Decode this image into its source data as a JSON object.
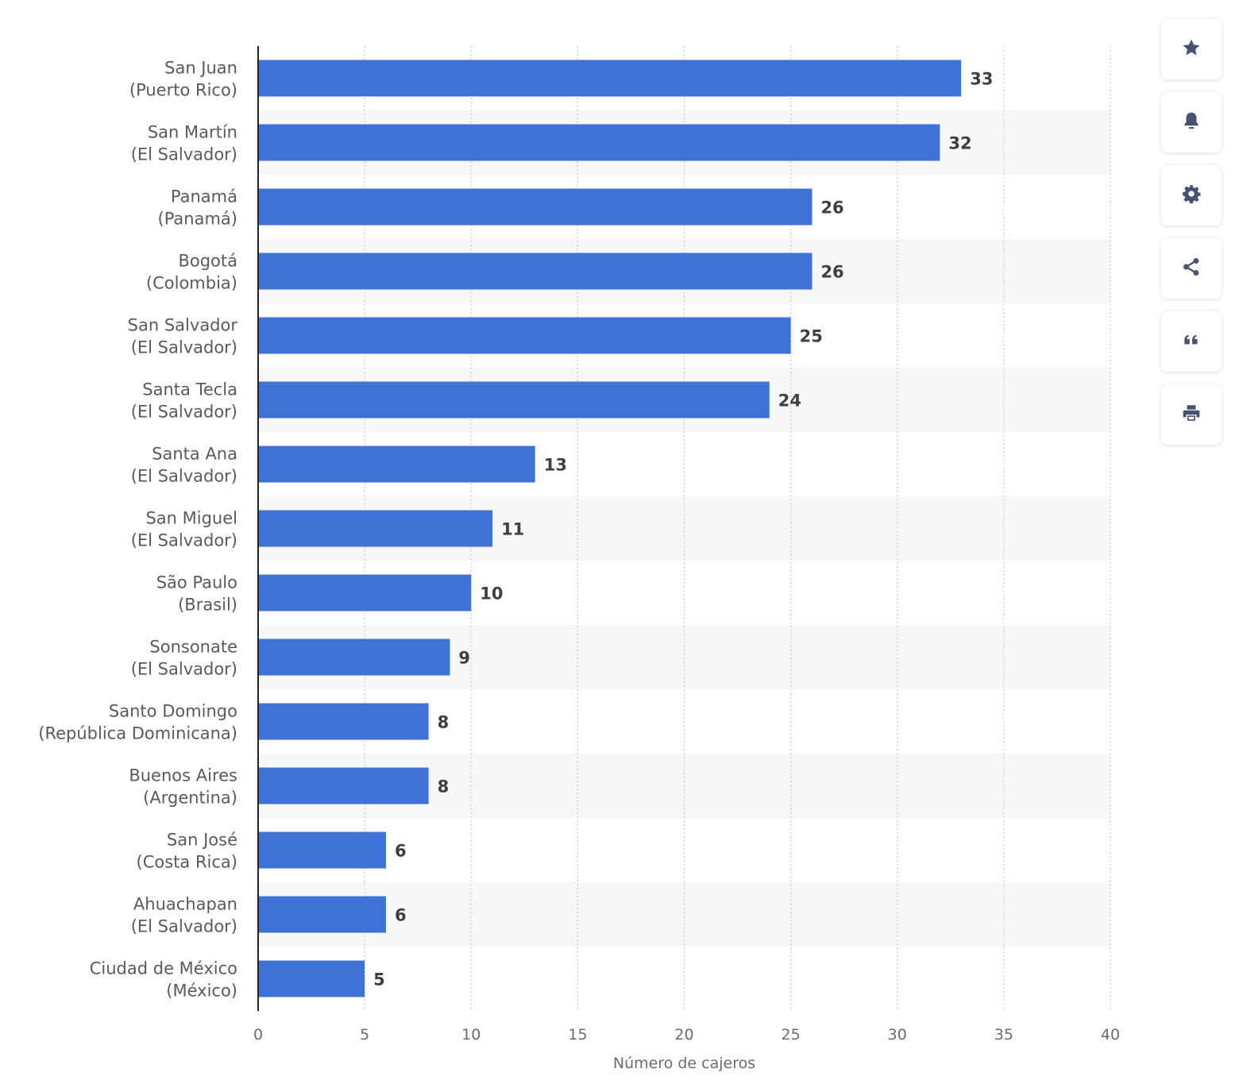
{
  "colors": {
    "bar": "#3f72d6",
    "band": "#f7f7f7",
    "grid": "#c8c8c8",
    "axis": "#222222",
    "icon": "#44546f"
  },
  "toolbar": {
    "buttons": [
      {
        "name": "favorite-button",
        "icon": "star-icon"
      },
      {
        "name": "notification-button",
        "icon": "bell-icon"
      },
      {
        "name": "settings-button",
        "icon": "gear-icon"
      },
      {
        "name": "share-button",
        "icon": "share-icon"
      },
      {
        "name": "cite-button",
        "icon": "quote-icon"
      },
      {
        "name": "print-button",
        "icon": "printer-icon"
      }
    ]
  },
  "chart_data": {
    "type": "bar",
    "orientation": "horizontal",
    "categories": [
      [
        "San Juan",
        "(Puerto Rico)"
      ],
      [
        "San Martín",
        "(El Salvador)"
      ],
      [
        "Panamá",
        "(Panamá)"
      ],
      [
        "Bogotá",
        "(Colombia)"
      ],
      [
        "San Salvador",
        "(El Salvador)"
      ],
      [
        "Santa Tecla",
        "(El Salvador)"
      ],
      [
        "Santa Ana",
        "(El Salvador)"
      ],
      [
        "San Miguel",
        "(El Salvador)"
      ],
      [
        "São Paulo",
        "(Brasil)"
      ],
      [
        "Sonsonate",
        "(El Salvador)"
      ],
      [
        "Santo Domingo",
        "(República Dominicana)"
      ],
      [
        "Buenos Aires",
        "(Argentina)"
      ],
      [
        "San José",
        "(Costa Rica)"
      ],
      [
        "Ahuachapan",
        "(El Salvador)"
      ],
      [
        "Ciudad de México",
        "(México)"
      ]
    ],
    "values": [
      33,
      32,
      26,
      26,
      25,
      24,
      13,
      11,
      10,
      9,
      8,
      8,
      6,
      6,
      5
    ],
    "xlabel": "Número de cajeros",
    "xlim": [
      0,
      40
    ],
    "xticks": [
      0,
      5,
      10,
      15,
      20,
      25,
      30,
      35,
      40
    ],
    "data_labels": true,
    "grid": "vertical dotted",
    "alternating_row_bands": true
  }
}
